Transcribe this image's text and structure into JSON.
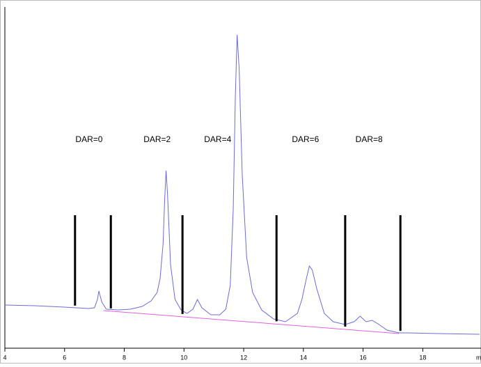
{
  "chart_data": {
    "type": "line",
    "xlabel": "mi",
    "xlim": [
      4,
      19.95
    ],
    "ylim": [
      0,
      490
    ],
    "xticks": [
      4,
      6,
      8,
      10,
      12,
      14,
      16,
      18
    ],
    "series": [
      {
        "color": "#6b6bd6",
        "x": [
          4.0,
          5.0,
          6.0,
          6.8,
          7.0,
          7.1,
          7.15,
          7.25,
          7.4,
          7.8,
          8.2,
          8.6,
          8.9,
          9.1,
          9.2,
          9.3,
          9.35,
          9.4,
          9.45,
          9.55,
          9.7,
          9.9,
          10.1,
          10.3,
          10.45,
          10.6,
          10.9,
          11.2,
          11.4,
          11.55,
          11.65,
          11.72,
          11.78,
          11.85,
          11.95,
          12.1,
          12.3,
          12.6,
          13.0,
          13.4,
          13.8,
          13.95,
          14.1,
          14.2,
          14.3,
          14.45,
          14.7,
          15.0,
          15.4,
          15.7,
          15.9,
          16.1,
          16.3,
          16.5,
          16.8,
          17.2,
          17.5,
          18.5,
          19.9
        ],
        "values": [
          62,
          61,
          59,
          57,
          58,
          70,
          82,
          66,
          56,
          55,
          56,
          60,
          68,
          80,
          100,
          150,
          210,
          255,
          220,
          120,
          70,
          55,
          50,
          56,
          70,
          58,
          48,
          48,
          56,
          90,
          200,
          360,
          450,
          400,
          250,
          130,
          80,
          55,
          42,
          38,
          50,
          70,
          100,
          118,
          112,
          85,
          50,
          38,
          34,
          38,
          46,
          38,
          40,
          35,
          26,
          22,
          22,
          21,
          20
        ]
      }
    ],
    "baseline": {
      "color": "#e060e0",
      "x": [
        7.3,
        17.2
      ],
      "values": [
        54,
        21
      ]
    },
    "cut_points": [
      6.35,
      7.55,
      9.95,
      13.1,
      15.4,
      17.25
    ],
    "annotations": [
      {
        "text": "DAR=0",
        "x": 6.82
      },
      {
        "text": "DAR=2",
        "x": 9.1
      },
      {
        "text": "DAR=4",
        "x": 11.13
      },
      {
        "text": "DAR=6",
        "x": 14.07
      },
      {
        "text": "DAR=8",
        "x": 16.2
      }
    ]
  }
}
